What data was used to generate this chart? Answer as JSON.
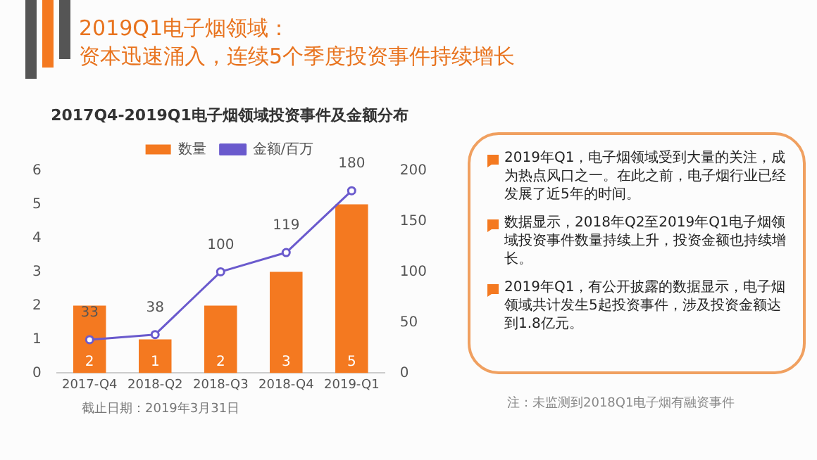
{
  "chart_data": {
    "type": "bar",
    "title": "2019Q1电子烟领域：",
    "subtitle": "资本迅速涌入，连续5个季度投资事件持续增长",
    "categories": [
      "2017-Q4",
      "2018-Q2",
      "2018-Q3",
      "2018-Q4",
      "2019-Q1"
    ],
    "series": [
      {
        "name": "数量",
        "color": "#f47920",
        "values": [
          2,
          1,
          2,
          3,
          5
        ]
      },
      {
        "name": "金额/百万",
        "type": "line",
        "axis": "y2",
        "color": "#6a5acd",
        "values": [
          33,
          38,
          100,
          119,
          180
        ]
      }
    ],
    "ylim": [
      0,
      6
    ],
    "yticks": [
      0,
      1,
      2,
      3,
      4,
      5,
      6
    ],
    "y2lim": [
      0,
      200
    ],
    "y2ticks": [
      0,
      50,
      100,
      150,
      200
    ],
    "grid": false,
    "legend": "top",
    "marker": "circle",
    "line_style": "solid",
    "data_labels": true,
    "annotations": [
      "2017Q4-2019Q1电子烟领域投资事件及金额分布",
      "2019年Q1，电子烟领域受到大量的关注，成为热点风口之一。在此之前，电子烟行业已经发展了近5年的时间。",
      "数据显示，2018年Q2至2019年Q1电子烟领域投资事件数量持续上升，投资金额也持续增长。",
      "2019年Q1，有公开披露的数据显示，电子烟领域共计发生5起投资事件，涉及投资金额达到1.8亿元。",
      "截止日期：2019年3月31日",
      "注：未监测到2018Q1电子烟有融资事件"
    ]
  }
}
